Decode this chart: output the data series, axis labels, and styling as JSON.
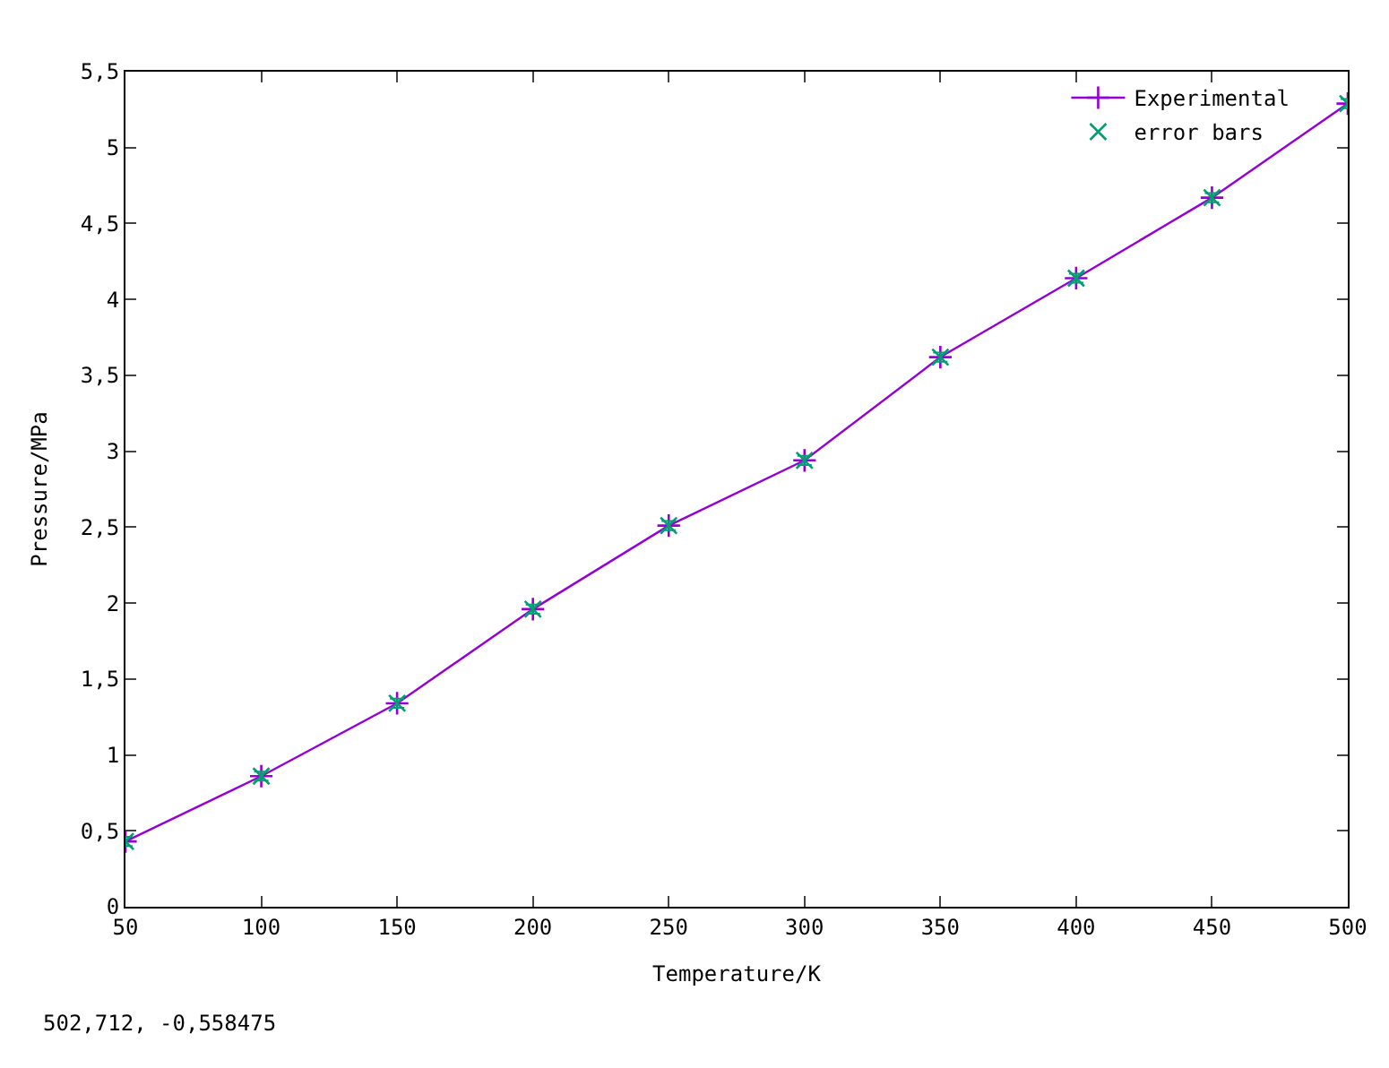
{
  "chart_data": {
    "type": "line",
    "xlabel": "Temperature/K",
    "ylabel": "Pressure/MPa",
    "x": [
      50,
      100,
      150,
      200,
      250,
      300,
      350,
      400,
      450,
      500
    ],
    "series": [
      {
        "name": "Experimental",
        "color": "#9400d3",
        "marker": "cross",
        "values": [
          0.43,
          0.86,
          1.34,
          1.96,
          2.51,
          2.94,
          3.62,
          4.14,
          4.67,
          5.29
        ]
      },
      {
        "name": "error bars",
        "type": "scatter",
        "color": "#009e73",
        "marker": "cross",
        "values": [
          0.43,
          0.86,
          1.34,
          1.96,
          2.51,
          2.94,
          3.62,
          4.14,
          4.67,
          5.29
        ],
        "errors": [
          0.03,
          0.03,
          0.03,
          0.03,
          0.03,
          0.03,
          0.03,
          0.03,
          0.03,
          0.03
        ]
      }
    ],
    "xlim": [
      50,
      500
    ],
    "xticks": [
      50,
      100,
      150,
      200,
      250,
      300,
      350,
      400,
      450,
      500
    ],
    "ylim": [
      0,
      5.5
    ],
    "yticks": [
      0,
      {
        "value": 0.5,
        "label": "0,5"
      },
      1,
      {
        "value": 1.5,
        "label": "1,5"
      },
      2,
      {
        "value": 2.5,
        "label": "2,5"
      },
      3,
      {
        "value": 3.5,
        "label": "3,5"
      },
      4,
      {
        "value": 4.5,
        "label": "4,5"
      },
      5,
      {
        "value": 5.5,
        "label": "5,5"
      }
    ],
    "legend": "top right",
    "annotations": [
      "502,712, -0,558475"
    ]
  }
}
